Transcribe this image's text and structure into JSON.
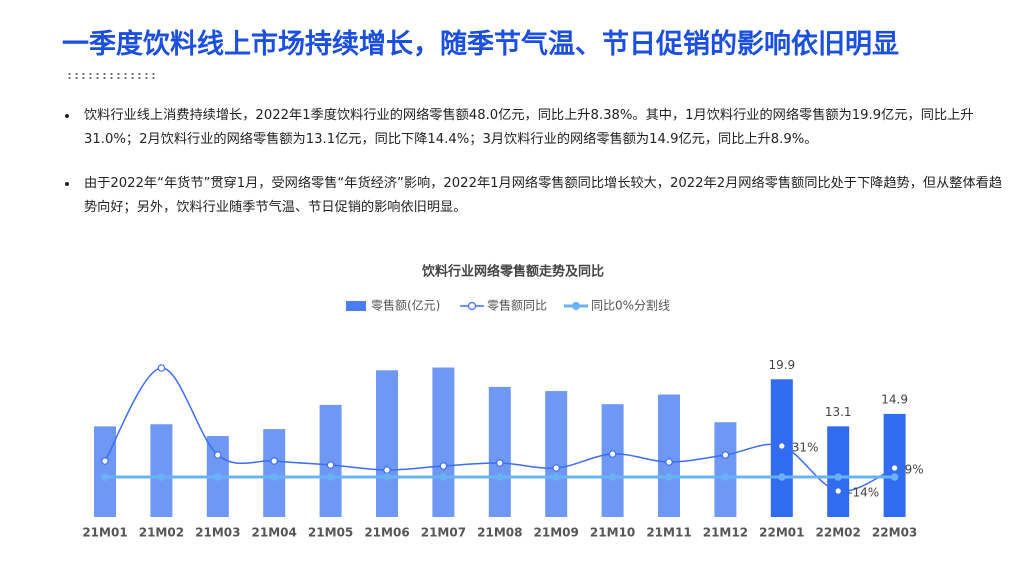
{
  "header": {
    "title": "一季度饮料线上市场持续增长，随季节气温、节日促销的影响依旧明显"
  },
  "bullets": [
    "饮料行业线上消费持续增长，2022年1季度饮料行业的网络零售额48.0亿元，同比上升8.38%。其中，1月饮料行业的网络零售额为19.9亿元，同比上升31.0%；2月饮料行业的网络零售额为13.1亿元，同比下降14.4%；3月饮料行业的网络零售额为14.9亿元，同比上升8.9%。",
    "由于2022年“年货节”贯穿1月，受网络零售“年货经济”影响，2022年1月网络零售额同比增长较大，2022年2月网络零售额同比处于下降趋势，但从整体看趋势向好；另外，饮料行业随季节气温、节日促销的影响依旧明显。"
  ],
  "chart_data": {
    "type": "bar",
    "title": "饮料行业网络零售额走势及同比",
    "categories": [
      "21M01",
      "21M02",
      "21M03",
      "21M04",
      "21M05",
      "21M06",
      "21M07",
      "21M08",
      "21M09",
      "21M10",
      "21M11",
      "21M12",
      "22M01",
      "22M02",
      "22M03"
    ],
    "ylim": [
      0,
      25
    ],
    "y2lim": [
      -40,
      133
    ],
    "series": [
      {
        "name": "零售额(亿元)",
        "type": "bar",
        "color": "#4a7cf3",
        "colors": [
          "#6f98f5",
          "#6f98f5",
          "#6f98f5",
          "#6f98f5",
          "#6f98f5",
          "#6f98f5",
          "#6f98f5",
          "#6f98f5",
          "#6f98f5",
          "#6f98f5",
          "#6f98f5",
          "#6f98f5",
          "#2f6cf0",
          "#2f6cf0",
          "#2f6cf0"
        ],
        "values": [
          13.1,
          13.4,
          11.7,
          12.7,
          16.2,
          21.2,
          21.6,
          18.8,
          18.2,
          16.3,
          17.7,
          13.7,
          19.9,
          13.1,
          14.9
        ],
        "value_labels": [
          null,
          null,
          null,
          null,
          null,
          null,
          null,
          null,
          null,
          null,
          null,
          null,
          "19.9",
          "13.1",
          "14.9"
        ]
      },
      {
        "name": "零售额同比",
        "type": "line",
        "axis": "y2",
        "color": "#3b6ef0",
        "values": [
          16,
          109,
          22,
          16,
          12,
          7,
          11,
          14,
          9,
          23,
          15,
          22,
          31,
          -14,
          9
        ],
        "value_labels": [
          null,
          null,
          null,
          null,
          null,
          null,
          null,
          null,
          null,
          null,
          null,
          null,
          "31%",
          "-14%",
          "9%"
        ]
      },
      {
        "name": "同比0%分割线",
        "type": "line",
        "axis": "y2",
        "color": "#69b3f5",
        "values": [
          0,
          0,
          0,
          0,
          0,
          0,
          0,
          0,
          0,
          0,
          0,
          0,
          0,
          0,
          0
        ]
      }
    ]
  }
}
